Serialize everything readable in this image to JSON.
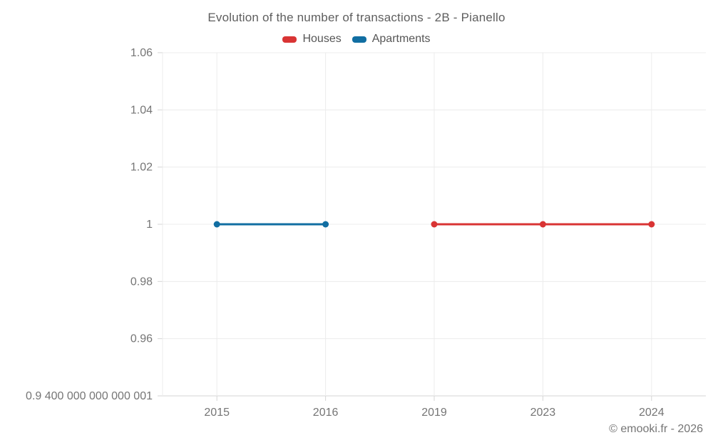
{
  "chart_data": {
    "type": "line",
    "title": "Evolution of the number of transactions - 2B - Pianello",
    "xlabel": "",
    "ylabel": "",
    "categories": [
      "2015",
      "2016",
      "2019",
      "2023",
      "2024"
    ],
    "ylim": [
      0.94,
      1.06
    ],
    "y_ticks": [
      {
        "value": 1.06,
        "label": "1.06"
      },
      {
        "value": 1.04,
        "label": "1.04"
      },
      {
        "value": 1.02,
        "label": "1.02"
      },
      {
        "value": 1.0,
        "label": "1"
      },
      {
        "value": 0.98,
        "label": "0.98"
      },
      {
        "value": 0.96,
        "label": "0.96"
      },
      {
        "value": 0.94,
        "label": "0.9 400 000 000 000 001"
      }
    ],
    "grid": true,
    "legend_position": "top",
    "series": [
      {
        "name": "Houses",
        "color": "#d93434",
        "points": [
          {
            "x": "2019",
            "y": 1
          },
          {
            "x": "2023",
            "y": 1
          },
          {
            "x": "2024",
            "y": 1
          }
        ]
      },
      {
        "name": "Apartments",
        "color": "#116ea2",
        "points": [
          {
            "x": "2015",
            "y": 1
          },
          {
            "x": "2016",
            "y": 1
          }
        ]
      }
    ]
  },
  "footer": {
    "copyright": "© emooki.fr - 2026"
  },
  "colors": {
    "grid": "#ececec",
    "axis": "#d6d6d6",
    "tick_text": "#757575"
  }
}
